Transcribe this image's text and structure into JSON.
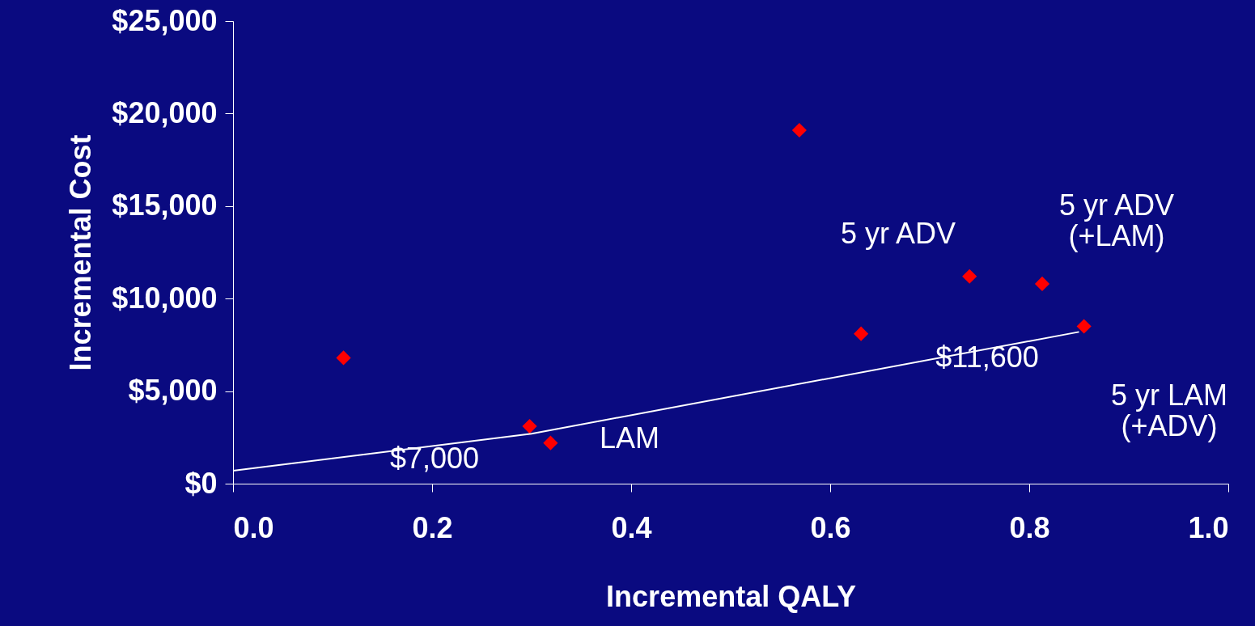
{
  "chart_data": {
    "type": "scatter",
    "xlabel": "Incremental QALY",
    "ylabel": "Incremental Cost",
    "xlim": [
      0,
      1
    ],
    "ylim": [
      0,
      25000
    ],
    "xticks": [
      {
        "value": 0,
        "label": "0.0"
      },
      {
        "value": 0.2,
        "label": "0.2"
      },
      {
        "value": 0.4,
        "label": "0.4"
      },
      {
        "value": 0.6,
        "label": "0.6"
      },
      {
        "value": 0.8,
        "label": "0.8"
      },
      {
        "value": 1,
        "label": "1.0"
      }
    ],
    "yticks": [
      {
        "value": 0,
        "label": "$0"
      },
      {
        "value": 5000,
        "label": "$5,000"
      },
      {
        "value": 10000,
        "label": "$10,000"
      },
      {
        "value": 15000,
        "label": "$15,000"
      },
      {
        "value": 20000,
        "label": "$20,000"
      },
      {
        "value": 25000,
        "label": "$25,000"
      }
    ],
    "series": [
      {
        "marker": "diamond",
        "color": "#ff0000",
        "x": [
          0.111,
          0.298,
          0.319,
          0.569,
          0.631,
          0.74,
          0.813,
          0.855
        ],
        "values": [
          6800,
          3100,
          2200,
          19100,
          8100,
          11200,
          10800,
          8500
        ]
      },
      {
        "type": "line",
        "line_style": "solid",
        "marker": "none",
        "color": "#ffffff",
        "x": [
          0,
          0.3,
          0.85
        ],
        "values": [
          700,
          2700,
          8200
        ]
      }
    ],
    "annotations": [
      "$7,000",
      "$11,600",
      "LAM",
      "5 yr ADV",
      "5 yr ADV\n(+LAM)",
      "5 yr LAM\n(+ADV)"
    ]
  }
}
